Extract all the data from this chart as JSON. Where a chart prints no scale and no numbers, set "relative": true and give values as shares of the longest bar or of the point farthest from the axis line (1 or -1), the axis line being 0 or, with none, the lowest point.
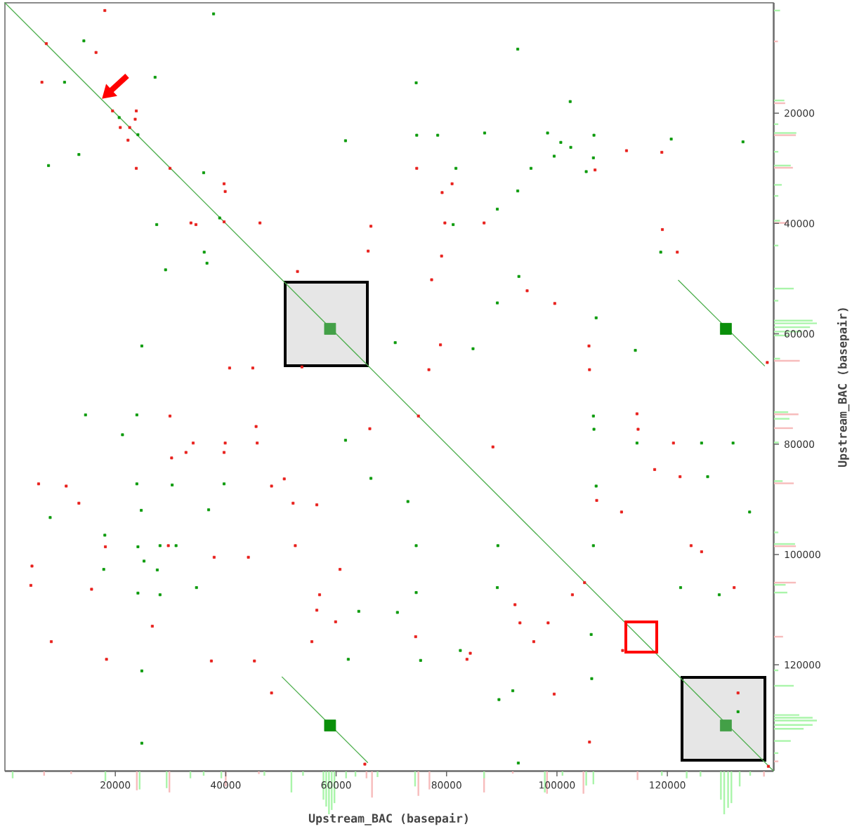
{
  "chart_data": [
    {
      "type": "scatter",
      "xlabel": "Upstream_BAC (basepair)",
      "ylabel": "Upstream_BAC (basepair)",
      "xlim": [
        0,
        139200
      ],
      "ylim": [
        139200,
        0
      ],
      "xticks": [
        20000,
        40000,
        60000,
        80000,
        100000,
        120000
      ],
      "yticks": [
        20000,
        40000,
        60000,
        80000,
        100000,
        120000
      ],
      "marker": "square",
      "series": [
        {
          "type": "line",
          "marker": "none",
          "color": "#4cae4c",
          "x": [
            0,
            139200
          ],
          "values": [
            0,
            139200
          ]
        },
        {
          "type": "line",
          "marker": "none",
          "color": "#4cae4c",
          "x": [
            122000,
            137600
          ],
          "values": [
            50300,
            65800
          ]
        },
        {
          "type": "line",
          "marker": "none",
          "color": "#4cae4c",
          "x": [
            50200,
            65700
          ],
          "values": [
            122200,
            137700
          ]
        },
        {
          "type": "bubble",
          "colors": [
            "#43a047",
            "#0a8f0a",
            "#0a8f0a",
            "#43a047"
          ],
          "x": [
            58900,
            130600,
            58900,
            130600
          ],
          "values": [
            59100,
            59100,
            131000,
            131000
          ],
          "sizes": [
            1,
            1,
            1,
            1
          ]
        },
        {
          "type": "scatter",
          "color": "#0a9a0a",
          "x": [
            37800,
            14300,
            92900,
            10800,
            27200,
            74500,
            102400,
            13400,
            7900,
            61700,
            74600,
            78400,
            86900,
            98300,
            100700,
            102500,
            106700,
            120700,
            133700,
            106600,
            99500,
            95300,
            81700,
            105300,
            36000,
            92900,
            89200,
            81200,
            27500,
            118800,
            36100,
            36600,
            29100,
            93100,
            89200,
            107100,
            70700,
            24800,
            84800,
            114200,
            14600,
            23900,
            21300,
            61700,
            106600,
            106700,
            114500,
            126200,
            131900,
            23900,
            30300,
            39700,
            66300,
            127300,
            107100,
            24700,
            36900,
            8200,
            73000,
            134900,
            18100,
            24100,
            31000,
            28100,
            74500,
            89300,
            106600,
            17900,
            25200,
            27600,
            34700,
            74500,
            89200,
            122400,
            129400,
            24100,
            28100,
            64100,
            71100,
            75300,
            82500,
            106200,
            62200,
            24800,
            89500,
            92000,
            106300,
            132800,
            24800,
            93000,
            20700,
            24100,
            38900
          ],
          "values": [
            2000,
            6900,
            8400,
            14400,
            13500,
            14500,
            17900,
            27500,
            29500,
            25000,
            24000,
            24000,
            23600,
            23600,
            25300,
            26200,
            24000,
            24700,
            25200,
            28100,
            27800,
            30000,
            30000,
            30600,
            30800,
            34100,
            37400,
            40200,
            40200,
            45200,
            45200,
            47200,
            48400,
            49600,
            54400,
            57100,
            61600,
            62200,
            62700,
            63000,
            74700,
            74700,
            78300,
            79300,
            74900,
            77300,
            79800,
            79800,
            79800,
            87200,
            87400,
            87200,
            86200,
            85900,
            87600,
            92000,
            91900,
            93300,
            90400,
            92300,
            96500,
            98600,
            98400,
            98400,
            98400,
            98400,
            98400,
            102700,
            101200,
            102800,
            106000,
            106900,
            106000,
            106000,
            107300,
            107000,
            107300,
            110300,
            110500,
            119200,
            117400,
            114500,
            119000,
            121100,
            126300,
            124700,
            122500,
            128500,
            134200,
            137800,
            20800,
            23900,
            39000
          ]
        },
        {
          "type": "scatter",
          "color": "#e8201c",
          "x": [
            18100,
            16500,
            7500,
            6700,
            23800,
            23600,
            20900,
            22600,
            22300,
            23800,
            112600,
            119000,
            74600,
            106900,
            39700,
            39900,
            81000,
            79200,
            79700,
            86800,
            33700,
            34600,
            46200,
            66300,
            119100,
            121800,
            65800,
            79100,
            53000,
            77300,
            94600,
            99600,
            78900,
            105800,
            40700,
            44900,
            53800,
            76800,
            105900,
            29900,
            66100,
            45500,
            88400,
            114500,
            114700,
            117700,
            121100,
            34100,
            39900,
            45700,
            32800,
            39700,
            30200,
            6100,
            11100,
            48300,
            50600,
            122300,
            13400,
            52200,
            56500,
            107200,
            111700,
            29600,
            18200,
            52600,
            124300,
            126200,
            4900,
            37900,
            44100,
            4700,
            15700,
            60700,
            132100,
            57000,
            56500,
            59900,
            92400,
            102800,
            26700,
            74400,
            83700,
            84300,
            93300,
            98400,
            111900,
            95800,
            8400,
            18400,
            37400,
            45200,
            55600,
            48300,
            99500,
            132800,
            105900,
            19500,
            29900,
            39700,
            74900,
            105000,
            65200,
            138100,
            138300
          ],
          "values": [
            1400,
            9000,
            7400,
            14400,
            19600,
            21100,
            22600,
            22600,
            24900,
            30000,
            26800,
            27100,
            30000,
            30300,
            32800,
            34200,
            32800,
            34400,
            39900,
            39900,
            39900,
            40200,
            39900,
            40500,
            41100,
            45200,
            45000,
            45900,
            48700,
            50200,
            52200,
            54500,
            62000,
            62200,
            66200,
            66200,
            66000,
            66500,
            66500,
            74900,
            77200,
            76800,
            80500,
            74500,
            77300,
            84600,
            79800,
            79800,
            79800,
            79800,
            81500,
            81500,
            82500,
            87200,
            87600,
            87600,
            86300,
            85900,
            90700,
            90700,
            91000,
            90200,
            92300,
            98400,
            98600,
            98400,
            98400,
            99500,
            102100,
            100500,
            100500,
            105600,
            106300,
            102700,
            106000,
            107300,
            110100,
            112200,
            109100,
            107300,
            113000,
            114900,
            119000,
            117900,
            112400,
            112400,
            117400,
            115800,
            115800,
            119000,
            119300,
            119300,
            115800,
            125100,
            125300,
            125100,
            134000,
            19600,
            30000,
            39700,
            74900,
            105100,
            138000,
            65200,
            138400
          ]
        }
      ]
    },
    {
      "type": "bar",
      "relative": true,
      "xlim": [
        0,
        139200
      ],
      "tick_labels": false,
      "series": [
        {
          "color": "#f7bcbc",
          "x": [
            7100,
            12000,
            23900,
            29800,
            40000,
            46000,
            65500,
            66500,
            74900,
            76900,
            86800,
            92000,
            98200,
            104800,
            114600,
            137500
          ],
          "values": [
            -0.1,
            -0.06,
            -0.44,
            -0.49,
            -0.35,
            -0.06,
            -0.16,
            -0.61,
            -0.57,
            -0.42,
            -0.49,
            -0.05,
            -0.52,
            -0.52,
            -0.2,
            -0.12
          ]
        },
        {
          "color": "#aaf5aa",
          "x": [
            1400,
            18200,
            24400,
            29300,
            33600,
            36000,
            39200,
            47000,
            51900,
            54000,
            57700,
            58200,
            58700,
            59200,
            59700,
            61800,
            63500,
            67500,
            74300,
            86800,
            97800,
            101000,
            105300,
            106600,
            119000,
            123500,
            126000,
            129700,
            130300,
            131000,
            131600,
            133100,
            135000
          ],
          "values": [
            -0.16,
            -0.23,
            -0.42,
            -0.39,
            -0.16,
            -0.1,
            -0.16,
            -0.1,
            -0.49,
            -0.1,
            -0.66,
            -0.82,
            -1,
            -0.9,
            -0.74,
            -0.16,
            -0.12,
            -0.13,
            -0.35,
            -0.16,
            -0.49,
            -0.1,
            -0.33,
            -0.3,
            -0.1,
            -0.16,
            -0.12,
            -0.66,
            -1,
            -0.85,
            -0.74,
            -0.35,
            -0.1
          ]
        }
      ]
    },
    {
      "type": "bar",
      "orientation": "horizontal",
      "relative": true,
      "ylim": [
        139200,
        0
      ],
      "tick_labels": false,
      "series": [
        {
          "color": "#f7bcbc",
          "x": [
            7000,
            18200,
            24000,
            29900,
            39900,
            64900,
            74600,
            77100,
            87100,
            98500,
            105100,
            114900,
            137500
          ],
          "values": [
            0.09,
            0.26,
            0.51,
            0.44,
            0.33,
            0.6,
            0.57,
            0.44,
            0.46,
            0.51,
            0.51,
            0.21,
            0.1
          ]
        },
        {
          "color": "#aaf5aa",
          "x": [
            1400,
            17700,
            22000,
            23600,
            27000,
            29500,
            33000,
            35000,
            39500,
            44000,
            51800,
            54000,
            57600,
            58100,
            58800,
            59600,
            60300,
            64500,
            74200,
            75400,
            79700,
            86700,
            96000,
            98100,
            105500,
            106900,
            121000,
            123800,
            129100,
            129600,
            130100,
            130900,
            131600,
            133800,
            136000
          ],
          "values": [
            0.14,
            0.24,
            0.1,
            0.52,
            0.1,
            0.39,
            0.18,
            0.1,
            0.14,
            0.1,
            0.46,
            0.1,
            0.9,
            1,
            0.84,
            0.65,
            0.34,
            0.14,
            0.33,
            0.36,
            0.11,
            0.2,
            0.1,
            0.49,
            0.27,
            0.31,
            0.1,
            0.46,
            0.59,
            0.9,
            1,
            0.9,
            0.69,
            0.39,
            0.1
          ]
        }
      ]
    }
  ]
}
